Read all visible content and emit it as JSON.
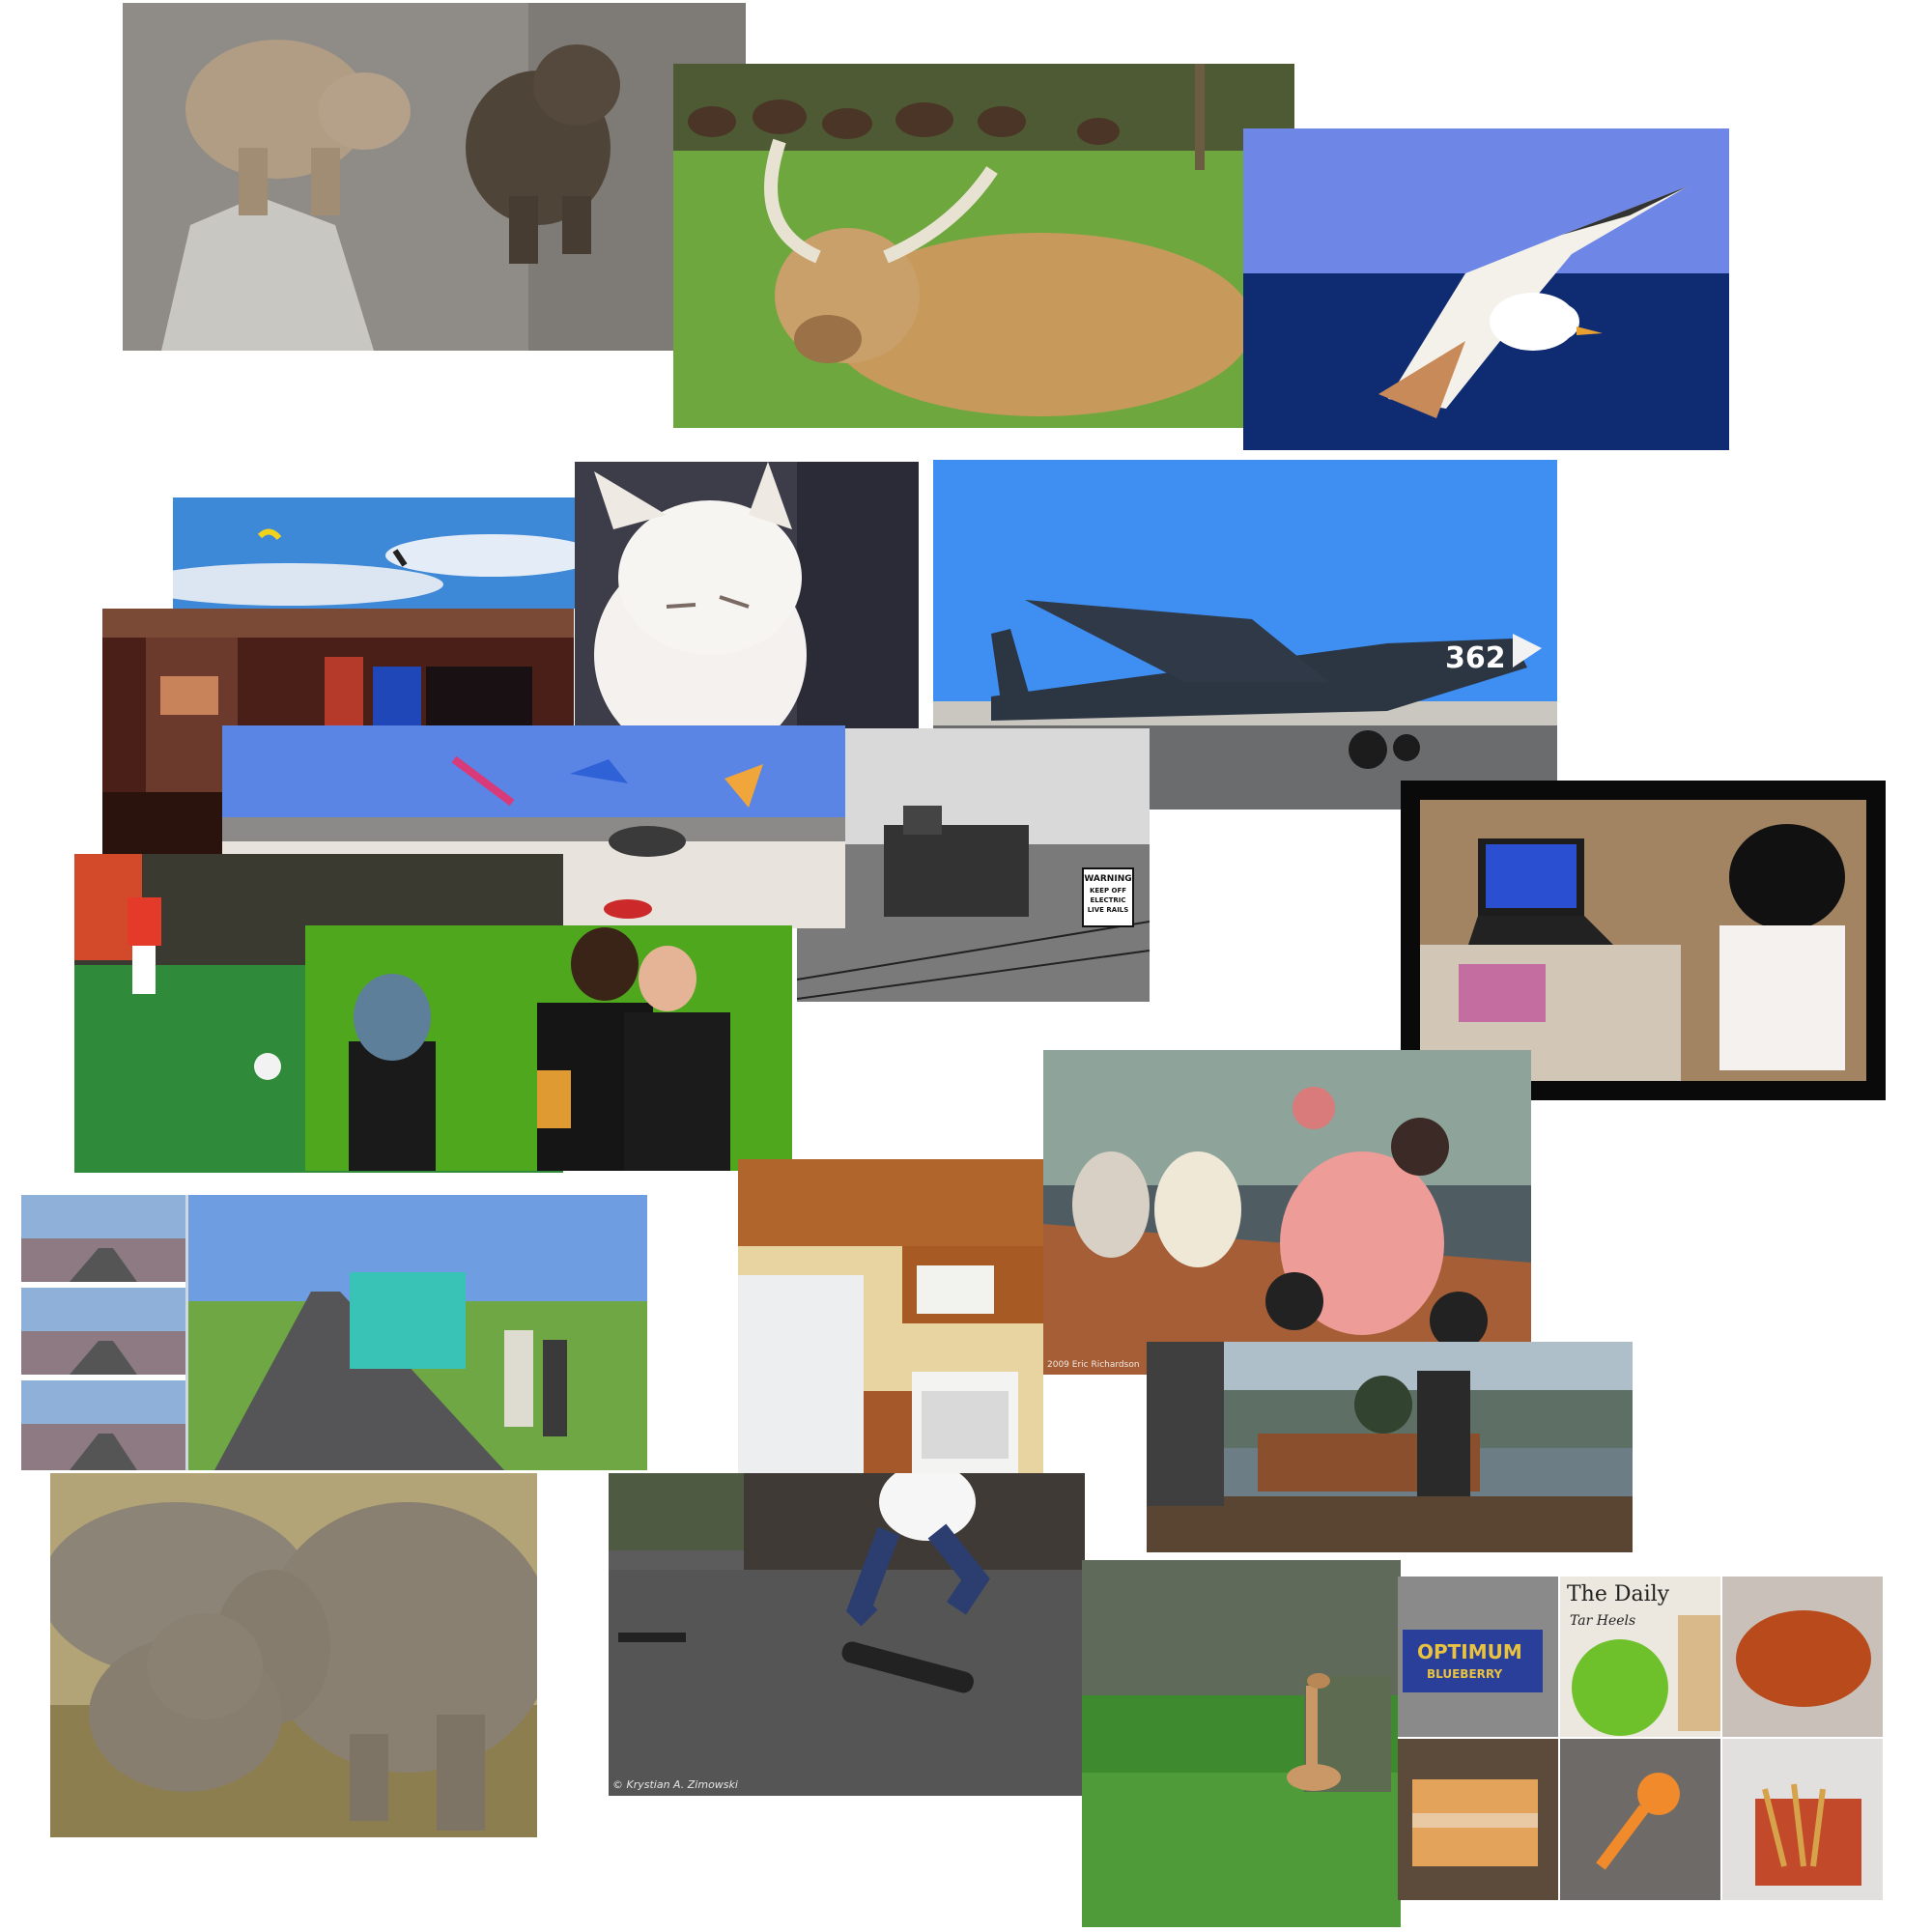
{
  "photos": {
    "bears": {
      "label": "bears-photo"
    },
    "highland_cow": {
      "label": "highland-cow-photo"
    },
    "seagull": {
      "label": "seagull-photo"
    },
    "kites_sky": {
      "label": "kites-sky-photo"
    },
    "living_room": {
      "label": "living-room-photo"
    },
    "kitten": {
      "label": "kitten-photo"
    },
    "airplane": {
      "label": "airplane-photo",
      "tail_number": "362"
    },
    "kites_beach": {
      "label": "kites-beach-photo"
    },
    "train": {
      "label": "train-photo",
      "sign_lines": [
        "WARNING",
        "KEEP OFF",
        "ELECTRIC",
        "LIVE RAILS"
      ]
    },
    "soccer": {
      "label": "soccer-photo"
    },
    "green_wall": {
      "label": "green-wall-photo"
    },
    "child_laptop": {
      "label": "child-laptop-photo"
    },
    "bus_road": {
      "label": "bus-road-photo"
    },
    "kitchen": {
      "label": "kitchen-photo"
    },
    "scooters": {
      "label": "scooters-photo",
      "caption": "2009 Eric Richardson"
    },
    "bench": {
      "label": "bench-photo"
    },
    "elephants": {
      "label": "elephants-photo"
    },
    "skateboard": {
      "label": "skateboard-photo",
      "caption": "© Krystian A. Zimowski"
    },
    "giraffe": {
      "label": "giraffe-photo"
    },
    "food_grid": {
      "label": "food-grid-photo",
      "newspaper_title": "The Daily",
      "newspaper_sub": "Tar Heels",
      "bar_brand": "OPTIMUM",
      "bar_flavor": "BLUEBERRY"
    }
  }
}
